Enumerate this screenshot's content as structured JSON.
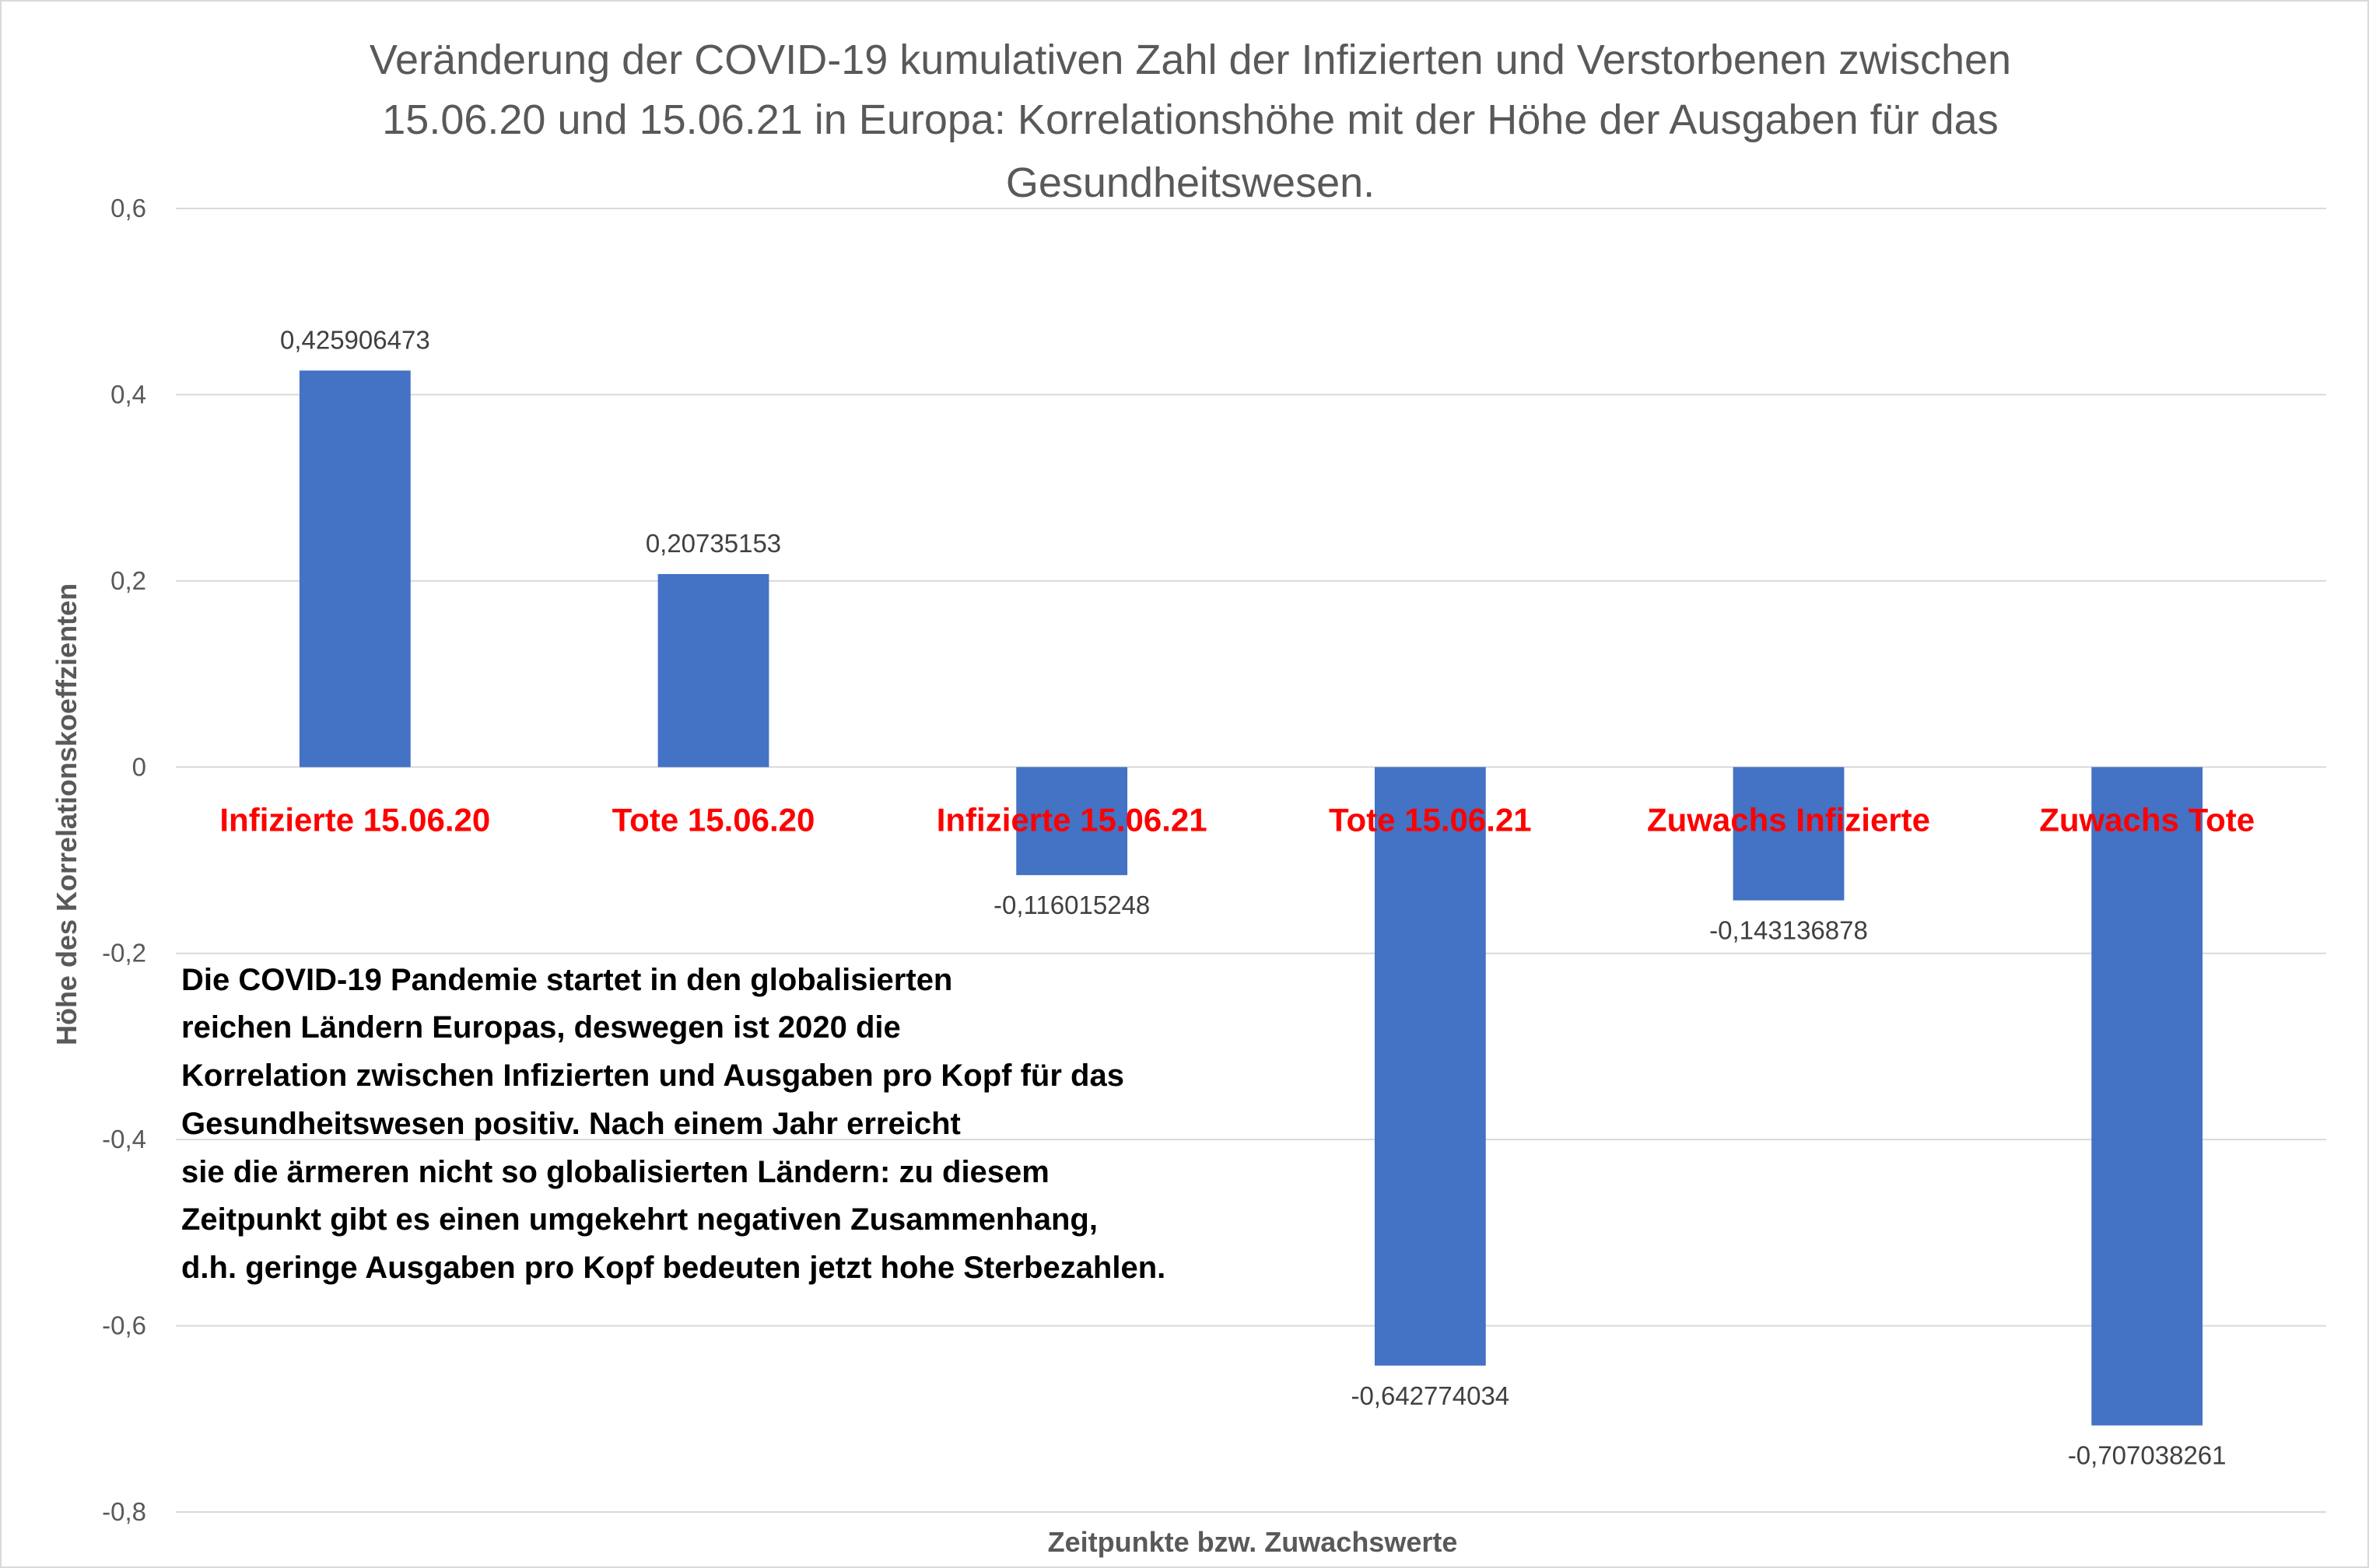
{
  "chart_data": {
    "type": "bar",
    "title_lines": [
      "Veränderung der COVID-19 kumulativen Zahl der Infizierten und Verstorbenen zwischen",
      "15.06.20 und 15.06.21 in Europa: Korrelationshöhe mit der Höhe der Ausgaben für das",
      "Gesundheitswesen."
    ],
    "xlabel": "Zeitpunkte bzw. Zuwachswerte",
    "ylabel": "Höhe des Korrelationskoeffzienten",
    "ylim": [
      -0.8,
      0.6
    ],
    "yticks": [
      0.6,
      0.4,
      0.2,
      0,
      -0.2,
      -0.4,
      -0.6,
      -0.8
    ],
    "ytick_labels": [
      "0,6",
      "0,4",
      "0,2",
      "0",
      "-0,2",
      "-0,4",
      "-0,6",
      "-0,8"
    ],
    "categories": [
      "Infizierte 15.06.20",
      "Tote 15.06.20",
      "Infizierte 15.06.21",
      "Tote 15.06.21",
      "Zuwachs Infizierte",
      "Zuwachs Tote"
    ],
    "values": [
      0.425906473,
      0.20735153,
      -0.116015248,
      -0.642774034,
      -0.143136878,
      -0.707038261
    ],
    "value_labels": [
      "0,425906473",
      "0,20735153",
      "-0,116015248",
      "-0,642774034",
      "-0,143136878",
      "-0,707038261"
    ],
    "grid": true,
    "legend": "none",
    "colors": {
      "bar": "#4472c4",
      "category_label": "#ff0000",
      "gridline": "#d9d9d9",
      "frame": "#d9d9d9"
    },
    "annotation_lines": [
      "Die COVID-19 Pandemie startet in den globalisierten",
      "reichen Ländern Europas, deswegen ist 2020 die",
      "Korrelation zwischen Infizierten und Ausgaben pro Kopf für das",
      "Gesundheitswesen positiv. Nach einem Jahr erreicht",
      "sie die ärmeren nicht so globalisierten Ländern: zu diesem",
      "Zeitpunkt gibt es einen umgekehrt negativen Zusammenhang,",
      "d.h. geringe Ausgaben pro Kopf bedeuten jetzt hohe Sterbezahlen."
    ]
  }
}
